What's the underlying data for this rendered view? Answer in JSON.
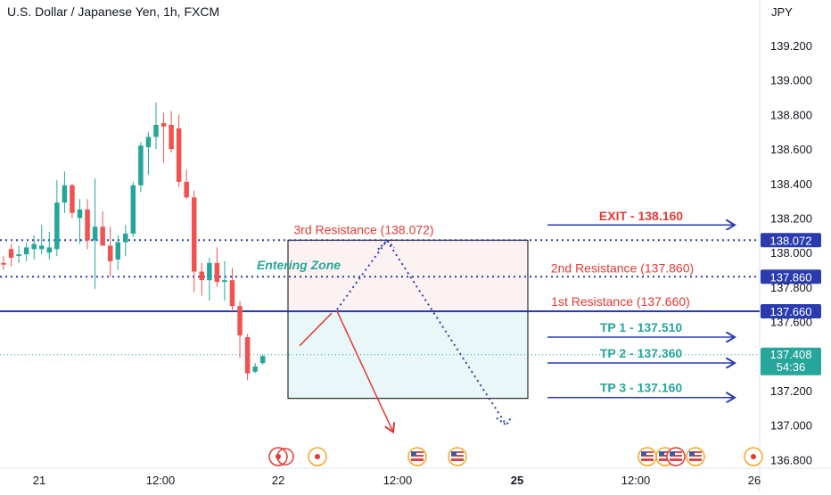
{
  "header": {
    "title": "U.S. Dollar / Japanese Yen, 1h, FXCM"
  },
  "axis": {
    "y_unit": "JPY",
    "y_ticks": [
      "139.200",
      "139.000",
      "138.800",
      "138.600",
      "138.400",
      "138.200",
      "138.000",
      "137.800",
      "137.600",
      "137.400",
      "137.200",
      "137.000",
      "136.800"
    ],
    "x_ticks": [
      "21",
      "12:00",
      "22",
      "12:00",
      "25",
      "12:00",
      "26"
    ]
  },
  "price_tags": {
    "level_138072": "138.072",
    "level_137860": "137.860",
    "level_137660": "137.660",
    "current_price": "137.408",
    "countdown": "54:36"
  },
  "annotations": {
    "entering_zone": "Entering Zone",
    "res3": "3rd Resistance (138.072)",
    "res2": "2nd Resistance (137.860)",
    "res1": "1st Resistance (137.660)",
    "exit": "EXIT - 138.160",
    "tp1": "TP 1 - 137.510",
    "tp2": "TP 2 - 137.360",
    "tp3": "TP 3 - 137.160"
  },
  "colors": {
    "bull": "#26a69a",
    "bear": "#ef5350",
    "level_line": "#2a3bb0",
    "red_text": "#e53935",
    "zone_top_fill": "#fdf2f2",
    "zone_bottom_fill": "#eaf7f8"
  },
  "chart_data": {
    "type": "candlestick",
    "y_unit": "JPY",
    "ylim": [
      136.76,
      139.32
    ],
    "candles": [
      {
        "o": 137.94,
        "h": 137.98,
        "l": 137.9,
        "c": 137.93
      },
      {
        "o": 138.02,
        "h": 138.05,
        "l": 137.92,
        "c": 137.97
      },
      {
        "o": 137.98,
        "h": 138.04,
        "l": 137.94,
        "c": 137.99
      },
      {
        "o": 137.99,
        "h": 138.06,
        "l": 137.95,
        "c": 138.03
      },
      {
        "o": 138.02,
        "h": 138.1,
        "l": 137.96,
        "c": 138.05
      },
      {
        "o": 138.02,
        "h": 138.16,
        "l": 137.99,
        "c": 138.04
      },
      {
        "o": 138.0,
        "h": 138.12,
        "l": 137.96,
        "c": 138.03
      },
      {
        "o": 138.02,
        "h": 138.42,
        "l": 137.98,
        "c": 138.29
      },
      {
        "o": 138.29,
        "h": 138.47,
        "l": 138.23,
        "c": 138.39
      },
      {
        "o": 138.39,
        "h": 138.4,
        "l": 138.2,
        "c": 138.23
      },
      {
        "o": 138.2,
        "h": 138.31,
        "l": 138.05,
        "c": 138.25
      },
      {
        "o": 138.25,
        "h": 138.31,
        "l": 138.02,
        "c": 138.07
      },
      {
        "o": 138.07,
        "h": 138.43,
        "l": 137.79,
        "c": 138.15
      },
      {
        "o": 138.15,
        "h": 138.24,
        "l": 138.04,
        "c": 138.04
      },
      {
        "o": 138.04,
        "h": 138.15,
        "l": 137.86,
        "c": 137.95
      },
      {
        "o": 137.96,
        "h": 138.1,
        "l": 137.9,
        "c": 138.06
      },
      {
        "o": 138.06,
        "h": 138.16,
        "l": 137.98,
        "c": 138.11
      },
      {
        "o": 138.11,
        "h": 138.41,
        "l": 138.09,
        "c": 138.39
      },
      {
        "o": 138.39,
        "h": 138.64,
        "l": 138.35,
        "c": 138.62
      },
      {
        "o": 138.61,
        "h": 138.7,
        "l": 138.45,
        "c": 138.67
      },
      {
        "o": 138.67,
        "h": 138.87,
        "l": 138.6,
        "c": 138.74
      },
      {
        "o": 138.75,
        "h": 138.81,
        "l": 138.52,
        "c": 138.73
      },
      {
        "o": 138.74,
        "h": 138.82,
        "l": 138.58,
        "c": 138.6
      },
      {
        "o": 138.72,
        "h": 138.8,
        "l": 138.38,
        "c": 138.41
      },
      {
        "o": 138.41,
        "h": 138.48,
        "l": 138.31,
        "c": 138.32
      },
      {
        "o": 138.32,
        "h": 138.36,
        "l": 137.77,
        "c": 137.89
      },
      {
        "o": 137.89,
        "h": 137.94,
        "l": 137.75,
        "c": 137.84
      },
      {
        "o": 137.84,
        "h": 137.97,
        "l": 137.72,
        "c": 137.94
      },
      {
        "o": 137.94,
        "h": 138.03,
        "l": 137.8,
        "c": 137.83
      },
      {
        "o": 137.83,
        "h": 137.95,
        "l": 137.72,
        "c": 137.84
      },
      {
        "o": 137.84,
        "h": 137.91,
        "l": 137.66,
        "c": 137.69
      },
      {
        "o": 137.69,
        "h": 137.72,
        "l": 137.39,
        "c": 137.52
      },
      {
        "o": 137.51,
        "h": 137.53,
        "l": 137.26,
        "c": 137.3
      },
      {
        "o": 137.31,
        "h": 137.36,
        "l": 137.3,
        "c": 137.34
      },
      {
        "o": 137.36,
        "h": 137.41,
        "l": 137.35,
        "c": 137.4
      }
    ],
    "levels": [
      {
        "label": "3rd Resistance",
        "value": 138.072,
        "style": "dotted"
      },
      {
        "label": "2nd Resistance",
        "value": 137.86,
        "style": "dotted"
      },
      {
        "label": "1st Resistance",
        "value": 137.66,
        "style": "solid"
      },
      {
        "label": "Current price",
        "value": 137.408,
        "style": "dotted"
      }
    ],
    "zone": {
      "top": 138.072,
      "mid": 137.66,
      "bottom": 137.155
    },
    "targets": {
      "exit": 138.16,
      "tp1": 137.51,
      "tp2": 137.36,
      "tp3": 137.16
    },
    "projection_path": [
      137.46,
      137.67,
      138.07,
      137.0
    ],
    "red_arrow_path": [
      137.66,
      136.96
    ]
  }
}
